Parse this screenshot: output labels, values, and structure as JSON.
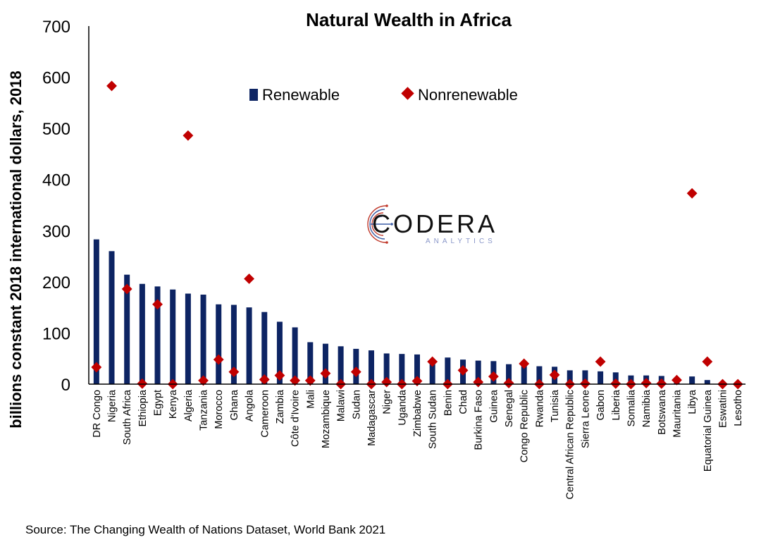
{
  "chart_data": {
    "type": "bar",
    "title": "Natural Wealth in Africa",
    "xlabel": "",
    "ylabel": "billions constant 2018 international dollars, 2018",
    "ylim": [
      0,
      700
    ],
    "yticks": [
      0,
      100,
      200,
      300,
      400,
      500,
      600,
      700
    ],
    "grid": false,
    "legend_position": "top-center",
    "categories": [
      "DR Congo",
      "Nigeria",
      "South Africa",
      "Ethiopia",
      "Egypt",
      "Kenya",
      "Algeria",
      "Tanzania",
      "Morocco",
      "Ghana",
      "Angola",
      "Cameroon",
      "Zambia",
      "Côte d'Ivoire",
      "Mali",
      "Mozambique",
      "Malawi",
      "Sudan",
      "Madagascar",
      "Niger",
      "Uganda",
      "Zimbabwe",
      "South Sudan",
      "Benin",
      "Chad",
      "Burkina Faso",
      "Guinea",
      "Senegal",
      "Congo Republic",
      "Rwanda",
      "Tunisia",
      "Central African Republic",
      "Sierra Leone",
      "Gabon",
      "Liberia",
      "Somalia",
      "Namibia",
      "Botswana",
      "Mauritania",
      "Libya",
      "Equatorial Guinea",
      "Eswatini",
      "Lesotho"
    ],
    "series": [
      {
        "name": "Renewable",
        "kind": "bar",
        "color": "#0d2463",
        "values": [
          283,
          260,
          214,
          196,
          191,
          185,
          177,
          175,
          156,
          155,
          150,
          141,
          122,
          111,
          82,
          79,
          74,
          69,
          66,
          60,
          59,
          58,
          43,
          52,
          48,
          46,
          45,
          39,
          38,
          35,
          34,
          27,
          27,
          25,
          23,
          17,
          17,
          16,
          10,
          15,
          8,
          2,
          2
        ]
      },
      {
        "name": "Nonrenewable",
        "kind": "marker",
        "color": "#c00000",
        "values": [
          33,
          583,
          186,
          1,
          156,
          0,
          486,
          7,
          48,
          24,
          206,
          9,
          17,
          7,
          7,
          21,
          0,
          24,
          0,
          4,
          0,
          6,
          44,
          0,
          27,
          4,
          15,
          2,
          40,
          0,
          18,
          0,
          1,
          44,
          1,
          0,
          2,
          1,
          8,
          373,
          44,
          0,
          0
        ]
      }
    ],
    "source": "Source: The Changing Wealth of Nations Dataset, World Bank 2021"
  },
  "logo": {
    "main": "CODERA",
    "sub": "ANALYTICS",
    "colors": {
      "main": "#111111",
      "sub": "#8a97c9",
      "accent_red": "#c0392b",
      "accent_blue": "#3b5ba5"
    }
  }
}
